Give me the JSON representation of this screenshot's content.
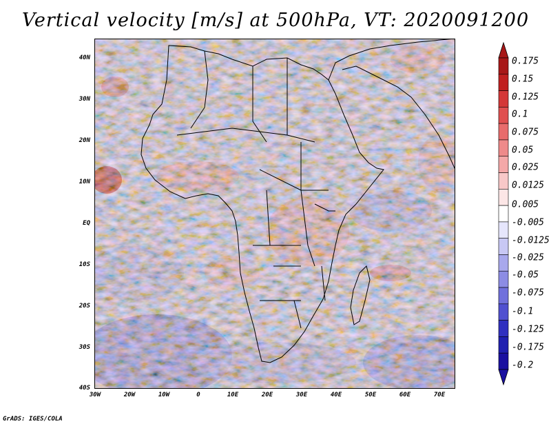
{
  "title": "Vertical velocity [m/s] at 500hPa, VT: 2020091200",
  "credit": "GrADS: IGES/COLA",
  "map": {
    "region": "Africa",
    "lat_range": [
      -40,
      45
    ],
    "lon_range": [
      -30,
      75
    ],
    "lat_ticks": [
      "40N",
      "30N",
      "20N",
      "10N",
      "EQ",
      "10S",
      "20S",
      "30S",
      "40S"
    ],
    "lon_ticks": [
      "30W",
      "20W",
      "10W",
      "0",
      "10E",
      "20E",
      "30E",
      "40E",
      "50E",
      "60E",
      "70E"
    ]
  },
  "colorbar": {
    "labels": [
      "0.175",
      "0.15",
      "0.125",
      "0.1",
      "0.075",
      "0.05",
      "0.025",
      "0.0125",
      "0.005",
      "-0.005",
      "-0.0125",
      "-0.025",
      "-0.05",
      "-0.075",
      "-0.1",
      "-0.125",
      "-0.175",
      "-0.2"
    ],
    "colors": [
      "#a81818",
      "#c02020",
      "#d43838",
      "#e05050",
      "#e86c6c",
      "#ee8a8a",
      "#f4a8a8",
      "#f8c8c8",
      "#fce6e6",
      "#ffffff",
      "#e6e6fc",
      "#c8c8f4",
      "#a8a8ec",
      "#8c8ce4",
      "#7070dc",
      "#5050d0",
      "#3030c0",
      "#2020b0",
      "#1a10a0"
    ]
  }
}
